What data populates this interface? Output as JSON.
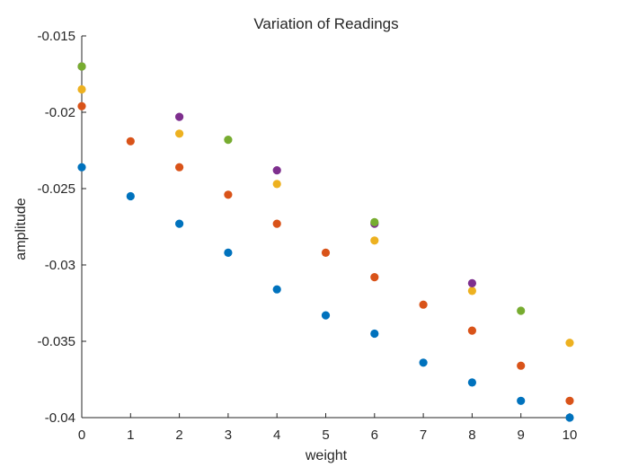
{
  "chart_data": {
    "type": "scatter",
    "title": "Variation of Readings",
    "xlabel": "weight",
    "ylabel": "amplitude",
    "xlim": [
      0,
      10
    ],
    "ylim": [
      -0.04,
      -0.015
    ],
    "xticks": [
      0,
      1,
      2,
      3,
      4,
      5,
      6,
      7,
      8,
      9,
      10
    ],
    "xtick_labels": [
      "0",
      "1",
      "2",
      "3",
      "4",
      "5",
      "6",
      "7",
      "8",
      "9",
      "10"
    ],
    "yticks": [
      -0.04,
      -0.035,
      -0.03,
      -0.025,
      -0.02,
      -0.015
    ],
    "ytick_labels": [
      "-0.04",
      "-0.035",
      "-0.03",
      "-0.025",
      "-0.02",
      "-0.015"
    ],
    "grid": false,
    "legend": "none",
    "series": [
      {
        "color": "#0072bd",
        "x": [
          0,
          1,
          2,
          3,
          4,
          5,
          6,
          7,
          8,
          9,
          10
        ],
        "y": [
          -0.0236,
          -0.0255,
          -0.0273,
          -0.0292,
          -0.0316,
          -0.0333,
          -0.0345,
          -0.0364,
          -0.0377,
          -0.0389,
          -0.04
        ]
      },
      {
        "color": "#d95319",
        "x": [
          0,
          1,
          2,
          3,
          4,
          5,
          6,
          7,
          8,
          9,
          10
        ],
        "y": [
          -0.0196,
          -0.0219,
          -0.0236,
          -0.0254,
          -0.0273,
          -0.0292,
          -0.0308,
          -0.0326,
          -0.0343,
          -0.0366,
          -0.0389
        ]
      },
      {
        "color": "#edb120",
        "x": [
          0,
          2,
          4,
          6,
          8,
          10
        ],
        "y": [
          -0.0185,
          -0.0214,
          -0.0247,
          -0.0284,
          -0.0317,
          -0.0351
        ]
      },
      {
        "color": "#7e2f8e",
        "x": [
          0,
          2,
          4,
          6,
          8
        ],
        "y": [
          -0.017,
          -0.0203,
          -0.0238,
          -0.0273,
          -0.0312
        ]
      },
      {
        "color": "#77ac30",
        "x": [
          0,
          3,
          6,
          9
        ],
        "y": [
          -0.017,
          -0.0218,
          -0.0272,
          -0.033
        ]
      }
    ]
  }
}
